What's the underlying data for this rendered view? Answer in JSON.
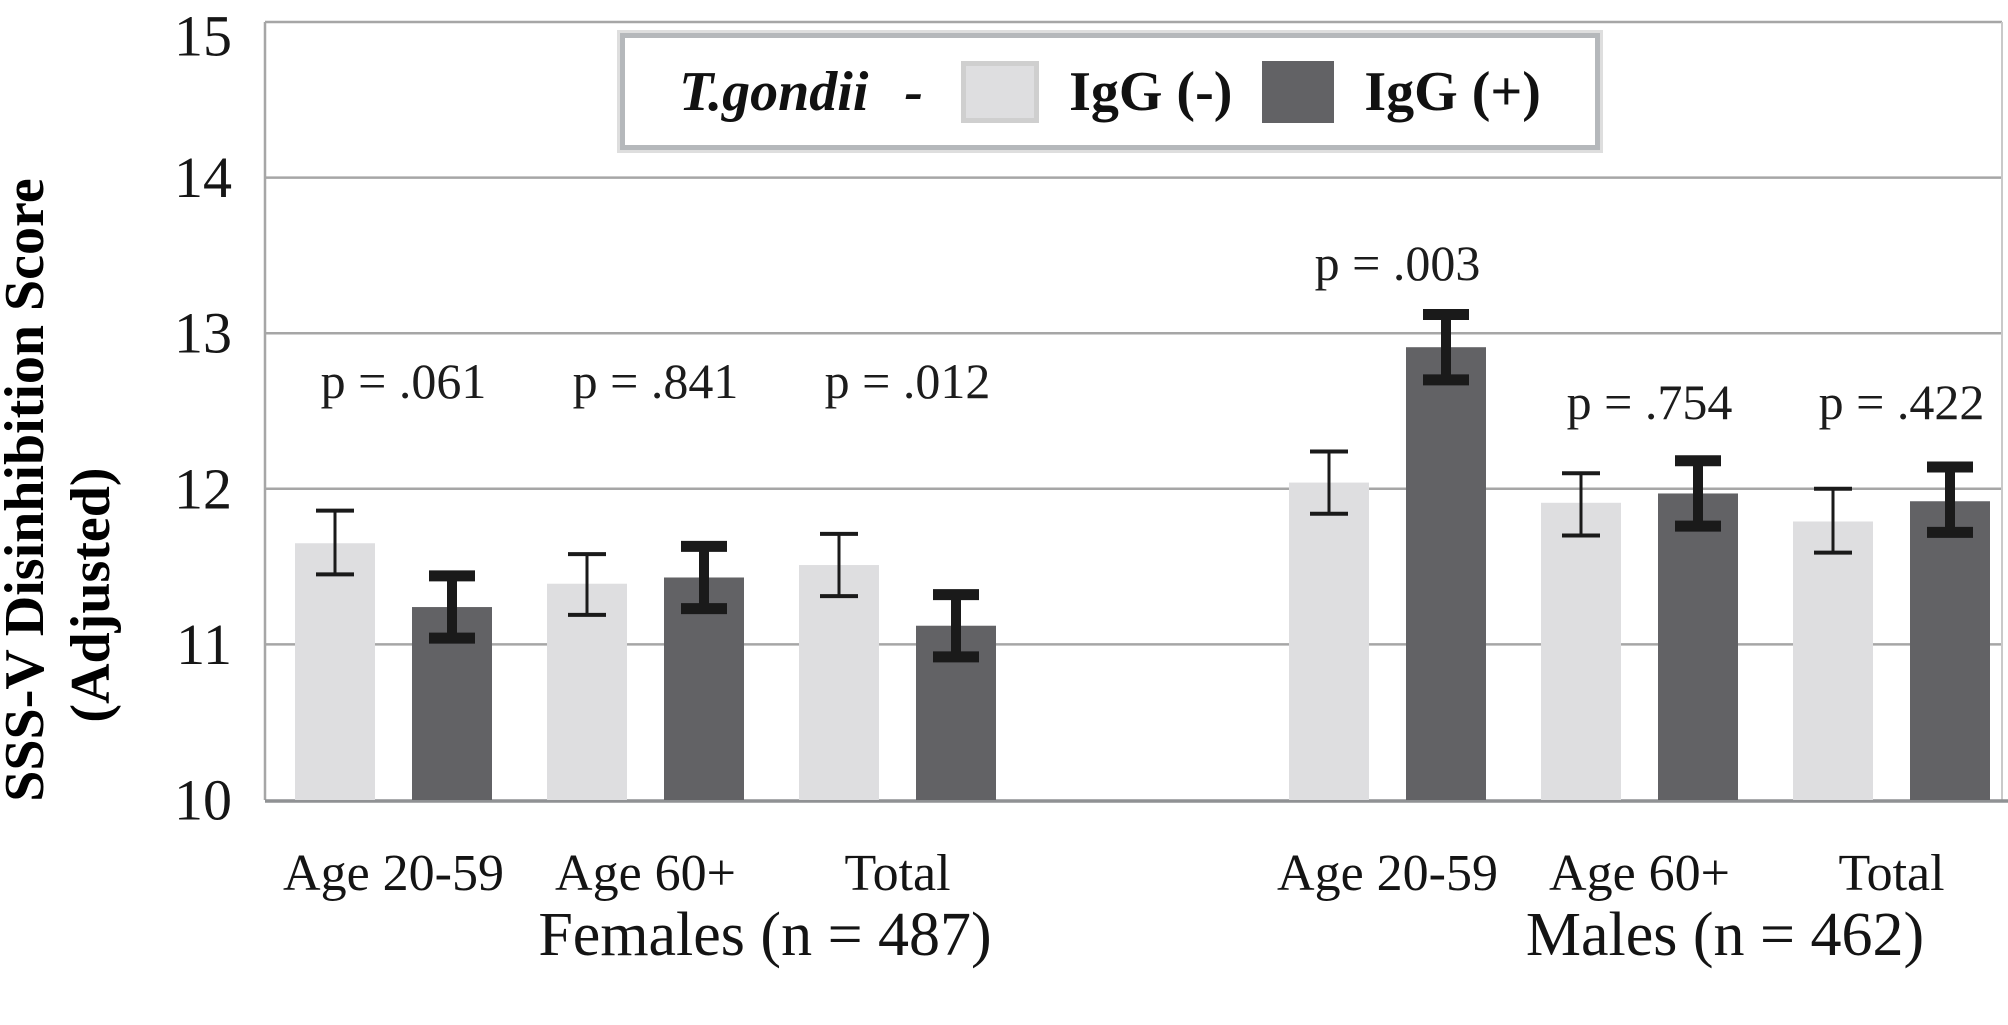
{
  "y_axis": {
    "title_line1": "SSS-V Disinhibition Score",
    "title_line2": "(Adjusted)"
  },
  "legend": {
    "title": "T.gondii -",
    "entries": [
      {
        "label": "IgG (-)",
        "color": "#dedee0",
        "border": "#cfcfcf"
      },
      {
        "label": "IgG (+)",
        "color": "#626265",
        "border": "#626265"
      }
    ]
  },
  "chart_data": {
    "type": "bar",
    "title": "",
    "ylabel": "SSS-V Disinhibition Score (Adjusted)",
    "xlabel": "",
    "ylim": [
      10,
      15
    ],
    "yticks": [
      10,
      11,
      12,
      13,
      14,
      15
    ],
    "grid": "horizontal gridlines at every integer tick",
    "legend_position": "top-center",
    "series_names": [
      "IgG (-)",
      "IgG (+)"
    ],
    "colors": {
      "igg_neg": "#dedee0",
      "igg_pos": "#626265",
      "gridline": "#a6a6a6",
      "axis": "#8f9193",
      "error_bar": "#1a1a1a"
    },
    "groups": [
      {
        "label": "Females (n = 487)",
        "categories": [
          "Age 20-59",
          "Age 60+",
          "Total"
        ],
        "p_labels": [
          "p = .061",
          "p = .841",
          "p = .012"
        ],
        "p_label_level": [
          12.69,
          12.69,
          12.69
        ],
        "series": {
          "igg_neg": {
            "name": "IgG (-)",
            "means": [
              11.65,
              11.39,
              11.51
            ],
            "err_lo": [
              11.45,
              11.19,
              11.31
            ],
            "err_hi": [
              11.86,
              11.58,
              11.71
            ]
          },
          "igg_pos": {
            "name": "IgG (+)",
            "means": [
              11.24,
              11.43,
              11.12
            ],
            "err_lo": [
              11.04,
              11.23,
              10.92
            ],
            "err_hi": [
              11.44,
              11.63,
              11.32
            ]
          }
        }
      },
      {
        "label": "Males (n = 462)",
        "categories": [
          "Age 20-59",
          "Age 60+",
          "Total"
        ],
        "p_labels": [
          "p = .003",
          "p = .754",
          "p = .422"
        ],
        "p_label_level": [
          13.45,
          12.56,
          12.56
        ],
        "series": {
          "igg_neg": {
            "name": "IgG (-)",
            "means": [
              12.04,
              11.91,
              11.79
            ],
            "err_lo": [
              11.84,
              11.7,
              11.59
            ],
            "err_hi": [
              12.24,
              12.1,
              12.0
            ]
          },
          "igg_pos": {
            "name": "IgG (+)",
            "means": [
              12.91,
              11.97,
              11.92
            ],
            "err_lo": [
              12.7,
              11.76,
              11.72
            ],
            "err_hi": [
              13.12,
              12.18,
              12.14
            ]
          }
        }
      }
    ]
  }
}
